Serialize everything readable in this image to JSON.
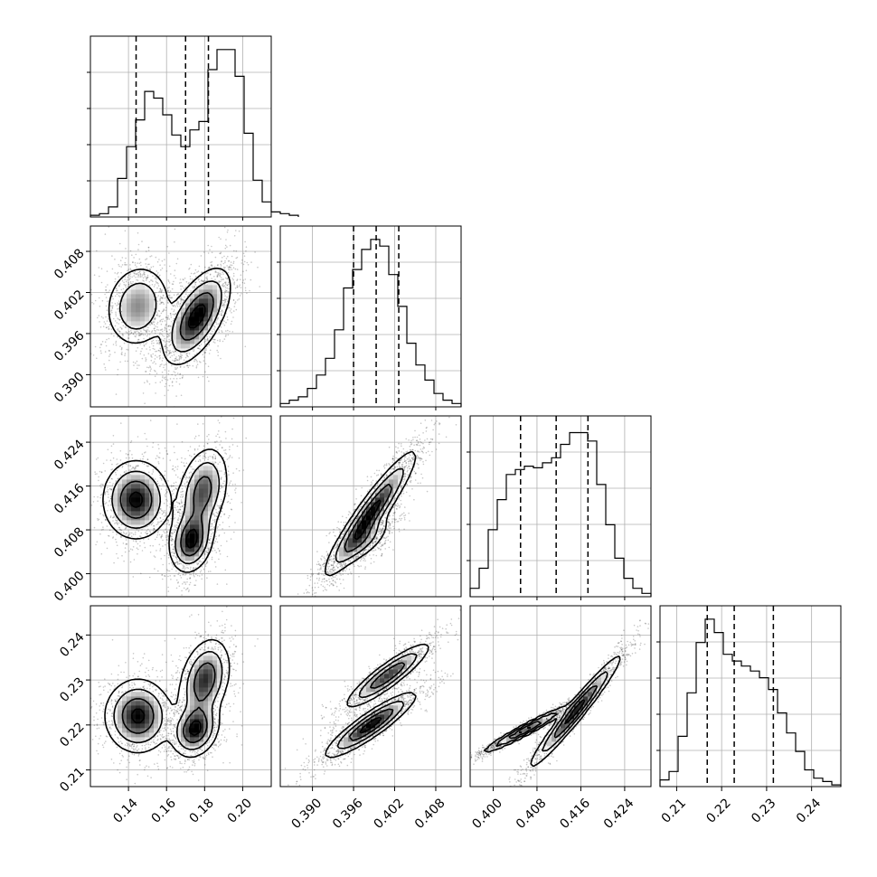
{
  "chart_data": {
    "type": "corner",
    "grid": true,
    "parameters": [
      {
        "index": 0,
        "range": [
          0.12,
          0.215
        ],
        "ticks": [
          "0.14",
          "0.16",
          "0.18",
          "0.20"
        ],
        "tick_values": [
          0.14,
          0.16,
          0.18,
          0.2
        ],
        "quantiles": [
          0.144,
          0.17,
          0.182
        ]
      },
      {
        "index": 1,
        "range": [
          0.3853,
          0.4117
        ],
        "ticks": [
          "0.390",
          "0.396",
          "0.402",
          "0.408"
        ],
        "tick_values": [
          0.39,
          0.396,
          0.402,
          0.408
        ],
        "quantiles": [
          0.396,
          0.3993,
          0.4026
        ]
      },
      {
        "index": 2,
        "range": [
          0.3958,
          0.4288
        ],
        "ticks": [
          "0.400",
          "0.408",
          "0.416",
          "0.424"
        ],
        "tick_values": [
          0.4,
          0.408,
          0.416,
          0.424
        ],
        "quantiles": [
          0.405,
          0.4115,
          0.4173
        ]
      },
      {
        "index": 3,
        "range": [
          0.2063,
          0.2465
        ],
        "ticks": [
          "0.21",
          "0.22",
          "0.23",
          "0.24"
        ],
        "tick_values": [
          0.21,
          0.22,
          0.23,
          0.24
        ],
        "quantiles": [
          0.2168,
          0.2228,
          0.2315
        ]
      }
    ],
    "histograms": [
      {
        "param": 0,
        "edges_start": 0.12,
        "bin_width": 0.00475,
        "counts": [
          0.01,
          0.02,
          0.06,
          0.23,
          0.42,
          0.58,
          0.75,
          0.71,
          0.61,
          0.49,
          0.42,
          0.52,
          0.57,
          0.88,
          1.0,
          1.0,
          0.84,
          0.5,
          0.22,
          0.09,
          0.03,
          0.02,
          0.01
        ]
      },
      {
        "param": 1,
        "edges_start": 0.3853,
        "bin_width": 0.00132,
        "counts": [
          0.02,
          0.04,
          0.06,
          0.11,
          0.19,
          0.29,
          0.46,
          0.71,
          0.82,
          0.94,
          1.0,
          0.96,
          0.79,
          0.6,
          0.38,
          0.25,
          0.16,
          0.08,
          0.04,
          0.02
        ]
      },
      {
        "param": 2,
        "edges_start": 0.3958,
        "bin_width": 0.00165,
        "counts": [
          0.05,
          0.17,
          0.4,
          0.58,
          0.73,
          0.76,
          0.78,
          0.77,
          0.8,
          0.83,
          0.91,
          0.98,
          0.98,
          0.93,
          0.67,
          0.43,
          0.23,
          0.11,
          0.05,
          0.02
        ]
      },
      {
        "param": 3,
        "edges_start": 0.2063,
        "bin_width": 0.00201,
        "counts": [
          0.04,
          0.09,
          0.3,
          0.56,
          0.86,
          1.0,
          0.92,
          0.79,
          0.75,
          0.72,
          0.69,
          0.65,
          0.58,
          0.44,
          0.32,
          0.21,
          0.1,
          0.05,
          0.03,
          0.01
        ]
      }
    ],
    "pair_modes": [
      {
        "x": 0,
        "y": 1,
        "modes": [
          {
            "mean": [
              0.145,
              0.4
            ],
            "sx": 0.0085,
            "sy": 0.003,
            "rho": 0.1,
            "w": 1.0
          },
          {
            "mean": [
              0.176,
              0.3985
            ],
            "sx": 0.0085,
            "sy": 0.0034,
            "rho": 0.6,
            "w": 1.7
          }
        ]
      },
      {
        "x": 0,
        "y": 2,
        "modes": [
          {
            "mean": [
              0.144,
              0.4135
            ],
            "sx": 0.0085,
            "sy": 0.0035,
            "rho": 0.0,
            "w": 1.0
          },
          {
            "mean": [
              0.173,
              0.406
            ],
            "sx": 0.0055,
            "sy": 0.0028,
            "rho": 0.2,
            "w": 1.0
          },
          {
            "mean": [
              0.179,
              0.415
            ],
            "sx": 0.0065,
            "sy": 0.004,
            "rho": 0.3,
            "w": 0.8
          }
        ]
      },
      {
        "x": 0,
        "y": 3,
        "modes": [
          {
            "mean": [
              0.145,
              0.222
            ],
            "sx": 0.0085,
            "sy": 0.004,
            "rho": 0.0,
            "w": 1.0
          },
          {
            "mean": [
              0.175,
              0.219
            ],
            "sx": 0.006,
            "sy": 0.003,
            "rho": 0.2,
            "w": 1.0
          },
          {
            "mean": [
              0.18,
              0.23
            ],
            "sx": 0.0065,
            "sy": 0.0045,
            "rho": 0.3,
            "w": 0.9
          }
        ]
      },
      {
        "x": 1,
        "y": 2,
        "modes": [
          {
            "mean": [
              0.3985,
              0.411
            ],
            "sx": 0.0032,
            "sy": 0.0055,
            "rho": 0.93,
            "w": 1.0
          },
          {
            "mean": [
              0.3975,
              0.406
            ],
            "sx": 0.002,
            "sy": 0.0022,
            "rho": 0.7,
            "w": 0.4
          }
        ]
      },
      {
        "x": 1,
        "y": 3,
        "modes": [
          {
            "mean": [
              0.401,
              0.231
            ],
            "sx": 0.003,
            "sy": 0.0035,
            "rho": 0.9,
            "w": 0.85
          },
          {
            "mean": [
              0.3985,
              0.22
            ],
            "sx": 0.0032,
            "sy": 0.0035,
            "rho": 0.9,
            "w": 1.0
          }
        ]
      },
      {
        "x": 2,
        "y": 3,
        "modes": [
          {
            "mean": [
              0.406,
              0.219
            ],
            "sx": 0.0038,
            "sy": 0.0025,
            "rho": 0.97,
            "w": 1.0
          },
          {
            "mean": [
              0.415,
              0.223
            ],
            "sx": 0.004,
            "sy": 0.006,
            "rho": 0.97,
            "w": 1.0
          }
        ]
      }
    ]
  }
}
